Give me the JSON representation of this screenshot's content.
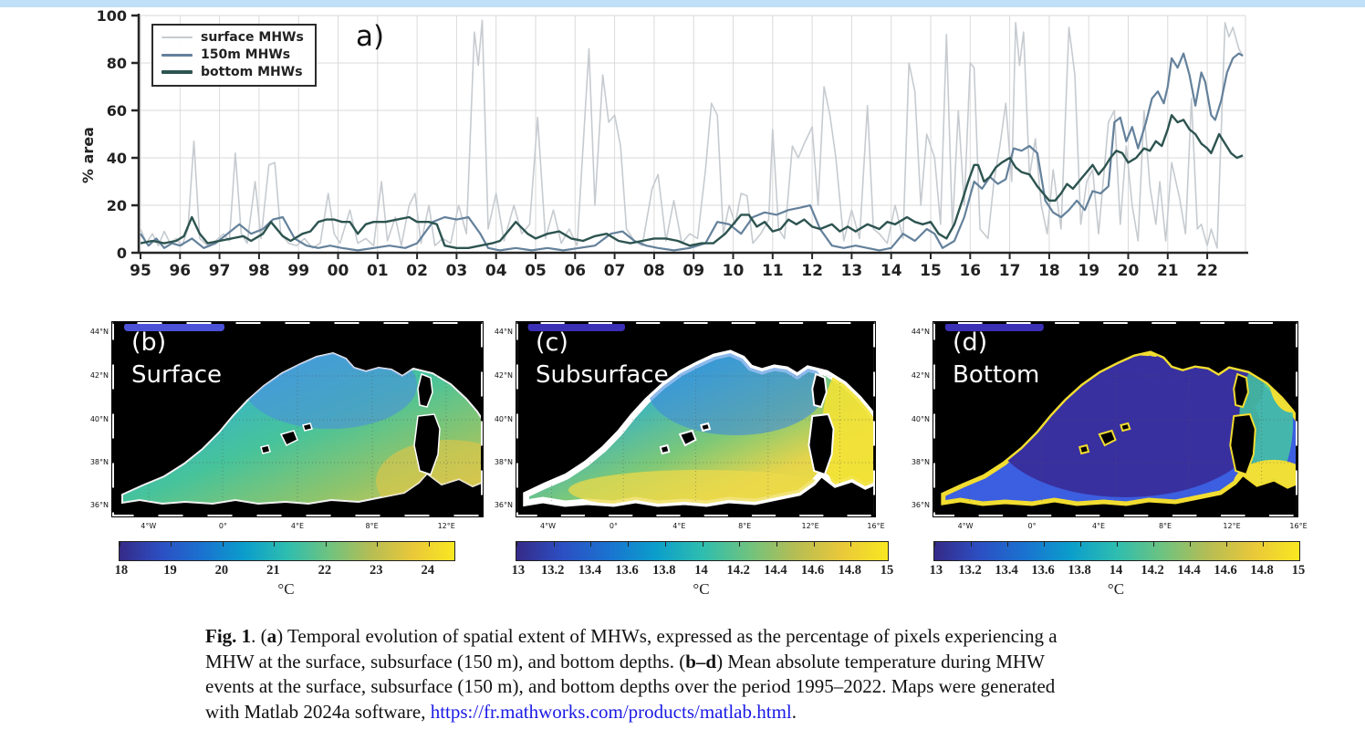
{
  "top_strip_color": "#bfe0f6",
  "chart_data": {
    "type": "line",
    "panel_label": "a)",
    "ylabel": "% area",
    "ylim": [
      0,
      100
    ],
    "xlim": [
      1995,
      2022.97
    ],
    "grid": true,
    "y_ticks": [
      "0",
      "20",
      "40",
      "60",
      "80",
      "100"
    ],
    "x_ticks": [
      "95",
      "96",
      "97",
      "98",
      "99",
      "00",
      "01",
      "02",
      "03",
      "04",
      "05",
      "06",
      "07",
      "08",
      "09",
      "10",
      "11",
      "12",
      "13",
      "14",
      "15",
      "16",
      "17",
      "18",
      "19",
      "20",
      "21",
      "22"
    ],
    "legend_position": "top-left",
    "legend": [
      {
        "label": "surface MHWs",
        "color": "#c6cbd0",
        "width": 2
      },
      {
        "label": "150m MHWs",
        "color": "#64819b",
        "width": 3
      },
      {
        "label": "bottom MHWs",
        "color": "#2d5450",
        "width": 3.2
      }
    ],
    "series": [
      {
        "name": "surface MHWs",
        "color": "#c6cbd0",
        "stroke_width": 1.6,
        "points": [
          1995.0,
          10,
          1995.15,
          4,
          1995.3,
          8,
          1995.45,
          3,
          1995.6,
          9,
          1995.75,
          4,
          1995.9,
          6,
          1996.05,
          3,
          1996.2,
          10,
          1996.35,
          47,
          1996.5,
          6,
          1996.7,
          3,
          1996.9,
          5,
          1997.1,
          8,
          1997.25,
          5,
          1997.4,
          42,
          1997.55,
          8,
          1997.7,
          4,
          1997.9,
          30,
          1998.05,
          6,
          1998.25,
          37,
          1998.4,
          38,
          1998.55,
          8,
          1998.75,
          4,
          1998.95,
          3,
          1999.15,
          6,
          1999.35,
          2,
          1999.55,
          4,
          1999.75,
          25,
          1999.9,
          8,
          2000.05,
          4,
          2000.3,
          18,
          2000.5,
          4,
          2000.7,
          6,
          2000.9,
          3,
          2001.1,
          30,
          2001.25,
          5,
          2001.45,
          15,
          2001.6,
          3,
          2001.8,
          20,
          2001.95,
          25,
          2002.1,
          4,
          2002.3,
          20,
          2002.45,
          3,
          2002.65,
          6,
          2002.85,
          4,
          2003.05,
          20,
          2003.25,
          8,
          2003.45,
          93,
          2003.55,
          79,
          2003.65,
          98,
          2003.8,
          10,
          2004.0,
          25,
          2004.2,
          5,
          2004.45,
          20,
          2004.65,
          8,
          2004.85,
          12,
          2005.05,
          57,
          2005.25,
          6,
          2005.45,
          18,
          2005.65,
          4,
          2005.85,
          10,
          2006.05,
          3,
          2006.35,
          86,
          2006.5,
          20,
          2006.7,
          75,
          2006.85,
          55,
          2007.0,
          58,
          2007.15,
          45,
          2007.3,
          10,
          2007.5,
          5,
          2007.7,
          3,
          2007.95,
          27,
          2008.1,
          33,
          2008.3,
          5,
          2008.5,
          22,
          2008.7,
          4,
          2008.9,
          8,
          2009.1,
          6,
          2009.3,
          35,
          2009.45,
          63,
          2009.6,
          58,
          2009.75,
          8,
          2009.9,
          20,
          2010.05,
          12,
          2010.2,
          25,
          2010.35,
          24,
          2010.5,
          4,
          2010.7,
          8,
          2010.9,
          14,
          2011.0,
          52,
          2011.15,
          10,
          2011.3,
          6,
          2011.5,
          45,
          2011.65,
          40,
          2011.8,
          46,
          2012.0,
          53,
          2012.15,
          20,
          2012.3,
          70,
          2012.45,
          58,
          2012.6,
          40,
          2012.8,
          5,
          2013.0,
          18,
          2013.2,
          6,
          2013.4,
          62,
          2013.55,
          10,
          2013.7,
          8,
          2013.9,
          4,
          2014.1,
          20,
          2014.3,
          6,
          2014.45,
          80,
          2014.6,
          68,
          2014.75,
          20,
          2014.9,
          50,
          2015.1,
          40,
          2015.25,
          12,
          2015.4,
          92,
          2015.55,
          10,
          2015.7,
          60,
          2015.85,
          20,
          2016.0,
          80,
          2016.1,
          78,
          2016.25,
          10,
          2016.45,
          6,
          2016.6,
          30,
          2016.75,
          45,
          2016.9,
          63,
          2017.05,
          30,
          2017.15,
          97,
          2017.25,
          79,
          2017.35,
          93,
          2017.5,
          32,
          2017.65,
          48,
          2017.8,
          20,
          2017.95,
          8,
          2018.1,
          35,
          2018.3,
          10,
          2018.5,
          95,
          2018.65,
          75,
          2018.8,
          12,
          2018.95,
          30,
          2019.1,
          35,
          2019.25,
          8,
          2019.5,
          55,
          2019.65,
          60,
          2019.8,
          12,
          2019.95,
          45,
          2020.1,
          20,
          2020.25,
          5,
          2020.4,
          60,
          2020.55,
          28,
          2020.7,
          12,
          2020.8,
          30,
          2020.95,
          5,
          2021.1,
          38,
          2021.3,
          23,
          2021.45,
          8,
          2021.6,
          65,
          2021.75,
          10,
          2021.85,
          12,
          2022.0,
          3,
          2022.1,
          10,
          2022.25,
          2,
          2022.45,
          97,
          2022.55,
          91,
          2022.65,
          95,
          2022.8,
          86,
          2022.9,
          83
        ]
      },
      {
        "name": "150m MHWs",
        "color": "#64819b",
        "stroke_width": 2.2,
        "points": [
          1995.0,
          8,
          1995.2,
          3,
          1995.4,
          6,
          1995.6,
          2,
          1995.8,
          4,
          1996.0,
          3,
          1996.3,
          6,
          1996.6,
          2,
          1996.9,
          4,
          1997.2,
          8,
          1997.5,
          12,
          1997.8,
          8,
          1998.1,
          10,
          1998.35,
          14,
          1998.6,
          15,
          1998.9,
          6,
          1999.2,
          3,
          1999.5,
          2,
          1999.8,
          3,
          2000.1,
          2,
          2000.5,
          1,
          2000.9,
          2,
          2001.3,
          3,
          2001.7,
          2,
          2002.0,
          4,
          2002.4,
          13,
          2002.7,
          15,
          2003.0,
          14,
          2003.3,
          15,
          2003.6,
          8,
          2003.8,
          2,
          2004.1,
          1,
          2004.5,
          2,
          2004.9,
          1,
          2005.3,
          2,
          2005.7,
          1,
          2006.1,
          2,
          2006.5,
          3,
          2006.9,
          8,
          2007.2,
          9,
          2007.5,
          5,
          2007.8,
          3,
          2008.1,
          2,
          2008.5,
          1,
          2008.9,
          2,
          2009.3,
          4,
          2009.6,
          13,
          2009.9,
          12,
          2010.2,
          8,
          2010.5,
          15,
          2010.8,
          17,
          2011.1,
          16,
          2011.4,
          18,
          2011.7,
          19,
          2011.95,
          20,
          2012.2,
          10,
          2012.5,
          3,
          2012.8,
          2,
          2013.1,
          3,
          2013.4,
          2,
          2013.7,
          1,
          2014.0,
          2,
          2014.3,
          8,
          2014.6,
          5,
          2014.9,
          10,
          2015.1,
          8,
          2015.3,
          2,
          2015.6,
          5,
          2015.85,
          15,
          2016.1,
          30,
          2016.3,
          27,
          2016.5,
          32,
          2016.7,
          29,
          2016.9,
          31,
          2017.1,
          44,
          2017.3,
          43,
          2017.5,
          45,
          2017.7,
          42,
          2017.9,
          22,
          2018.1,
          17,
          2018.3,
          15,
          2018.5,
          18,
          2018.7,
          22,
          2018.9,
          18,
          2019.1,
          26,
          2019.3,
          25,
          2019.5,
          28,
          2019.65,
          55,
          2019.8,
          57,
          2019.95,
          47,
          2020.1,
          53,
          2020.25,
          44,
          2020.45,
          55,
          2020.6,
          65,
          2020.75,
          68,
          2020.9,
          63,
          2021.0,
          70,
          2021.1,
          82,
          2021.25,
          78,
          2021.4,
          84,
          2021.55,
          75,
          2021.7,
          62,
          2021.85,
          76,
          2021.95,
          72,
          2022.1,
          58,
          2022.2,
          56,
          2022.35,
          64,
          2022.5,
          76,
          2022.65,
          82,
          2022.8,
          84,
          2022.9,
          83
        ]
      },
      {
        "name": "bottom MHWs",
        "color": "#2d5450",
        "stroke_width": 2.4,
        "points": [
          1995.0,
          4,
          1995.3,
          5,
          1995.6,
          4,
          1995.9,
          5,
          1996.1,
          7,
          1996.3,
          15,
          1996.5,
          8,
          1996.7,
          4,
          1997.0,
          5,
          1997.3,
          6,
          1997.6,
          7,
          1997.8,
          5,
          1998.1,
          8,
          1998.3,
          13,
          1998.6,
          7,
          1998.8,
          5,
          1999.1,
          8,
          1999.3,
          9,
          1999.5,
          13,
          1999.7,
          14,
          1999.9,
          14,
          2000.1,
          13,
          2000.3,
          13,
          2000.5,
          8,
          2000.7,
          12,
          2000.9,
          13,
          2001.2,
          13,
          2001.5,
          14,
          2001.8,
          15,
          2002.0,
          13,
          2002.3,
          13,
          2002.5,
          12,
          2002.7,
          3,
          2003.0,
          2,
          2003.3,
          2,
          2003.6,
          3,
          2003.9,
          4,
          2004.1,
          5,
          2004.3,
          9,
          2004.5,
          13,
          2004.8,
          8,
          2005.0,
          6,
          2005.3,
          8,
          2005.6,
          9,
          2005.9,
          6,
          2006.2,
          5,
          2006.5,
          7,
          2006.8,
          8,
          2007.1,
          5,
          2007.4,
          4,
          2007.7,
          5,
          2008.0,
          6,
          2008.3,
          6,
          2008.6,
          5,
          2008.9,
          3,
          2009.2,
          4,
          2009.5,
          4,
          2009.8,
          8,
          2010.0,
          12,
          2010.2,
          16,
          2010.4,
          16,
          2010.6,
          11,
          2010.8,
          13,
          2011.0,
          9,
          2011.2,
          10,
          2011.4,
          14,
          2011.6,
          12,
          2011.8,
          14,
          2012.0,
          11,
          2012.2,
          10,
          2012.5,
          12,
          2012.7,
          9,
          2012.9,
          11,
          2013.1,
          9,
          2013.4,
          12,
          2013.7,
          10,
          2013.9,
          13,
          2014.1,
          12,
          2014.4,
          15,
          2014.6,
          13,
          2014.8,
          12,
          2015.0,
          13,
          2015.2,
          8,
          2015.4,
          6,
          2015.6,
          12,
          2015.8,
          22,
          2015.95,
          30,
          2016.1,
          37,
          2016.2,
          37,
          2016.35,
          30,
          2016.5,
          32,
          2016.65,
          36,
          2016.8,
          38,
          2017.0,
          40,
          2017.15,
          36,
          2017.3,
          34,
          2017.5,
          33,
          2017.7,
          28,
          2017.85,
          25,
          2018.0,
          22,
          2018.15,
          22,
          2018.3,
          25,
          2018.45,
          29,
          2018.6,
          27,
          2018.8,
          31,
          2019.0,
          35,
          2019.1,
          37,
          2019.25,
          33,
          2019.4,
          36,
          2019.55,
          40,
          2019.7,
          43,
          2019.85,
          42,
          2020.0,
          38,
          2020.2,
          40,
          2020.4,
          44,
          2020.55,
          43,
          2020.7,
          47,
          2020.85,
          45,
          2021.0,
          52,
          2021.1,
          58,
          2021.25,
          55,
          2021.4,
          56,
          2021.55,
          52,
          2021.7,
          50,
          2021.85,
          46,
          2022.0,
          44,
          2022.1,
          42,
          2022.2,
          46,
          2022.3,
          50,
          2022.45,
          46,
          2022.6,
          42,
          2022.75,
          40,
          2022.9,
          41
        ]
      }
    ]
  },
  "maps": [
    {
      "label": "(b)",
      "title": "Surface",
      "lat_labels": [
        "44°N",
        "42°N",
        "40°N",
        "38°N",
        "36°N"
      ],
      "lon_labels": [
        "4°W",
        "0°",
        "4°E",
        "8°E",
        "12°E"
      ],
      "colorbar": {
        "ticks": [
          "18",
          "19",
          "20",
          "21",
          "22",
          "23",
          "24"
        ],
        "unit": "°C",
        "overhang": 0.5
      }
    },
    {
      "label": "(c)",
      "title": "Subsurface",
      "lat_labels": [
        "44°N",
        "42°N",
        "40°N",
        "38°N",
        "36°N"
      ],
      "lon_labels": [
        "4°W",
        "0°",
        "4°E",
        "8°E",
        "12°E",
        "16°E"
      ],
      "colorbar": {
        "ticks": [
          "13",
          "13.2",
          "13.4",
          "13.6",
          "13.8",
          "14",
          "14.2",
          "14.4",
          "14.6",
          "14.8",
          "15"
        ],
        "unit": "°C",
        "overhang": 0
      }
    },
    {
      "label": "(d)",
      "title": "Bottom",
      "lat_labels": [
        "44°N",
        "42°N",
        "40°N",
        "38°N",
        "36°N"
      ],
      "lon_labels": [
        "4°W",
        "0°",
        "4°E",
        "8°E",
        "12°E",
        "16°E"
      ],
      "colorbar": {
        "ticks": [
          "13",
          "13.2",
          "13.4",
          "13.6",
          "13.8",
          "14",
          "14.2",
          "14.4",
          "14.6",
          "14.8",
          "15"
        ],
        "unit": "°C",
        "overhang": 0
      }
    }
  ],
  "colormap_parula": [
    "#352a87",
    "#2c4fc3",
    "#1a73d0",
    "#0b9ecb",
    "#2ebdaf",
    "#6ec380",
    "#b5bd54",
    "#e9c83a",
    "#f9e721"
  ],
  "caption": {
    "lines": [
      {
        "segments": [
          {
            "t": "Fig. 1",
            "b": true
          },
          {
            "t": ".  ("
          },
          {
            "t": "a",
            "b": true
          },
          {
            "t": ") Temporal evolution of spatial extent of MHWs, expressed as the percentage of pixels experiencing a"
          }
        ]
      },
      {
        "segments": [
          {
            "t": "MHW at the surface, subsurface (150 m), and bottom depths. ("
          },
          {
            "t": "b–d",
            "b": true
          },
          {
            "t": ") Mean absolute temperature during MHW"
          }
        ]
      },
      {
        "segments": [
          {
            "t": "events at the surface, subsurface (150 m), and bottom depths over the period 1995–2022. Maps were generated"
          }
        ]
      },
      {
        "segments": [
          {
            "t": "with Matlab 2024a software, "
          },
          {
            "t": "https://fr.mathworks.com/products/matlab.html",
            "link": true
          },
          {
            "t": "."
          }
        ]
      }
    ],
    "link_color": "#1a1ae6"
  }
}
